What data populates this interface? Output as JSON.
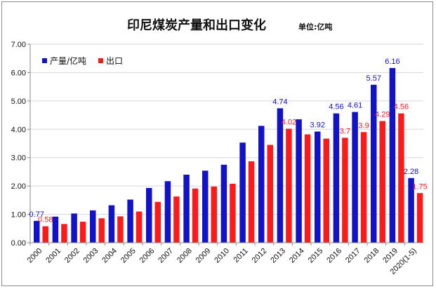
{
  "title": "印尼煤炭产量和出口变化",
  "unit_label": "单位:亿吨",
  "colors": {
    "production": "#1212c8",
    "export": "#ff1a1a",
    "grid": "#d6d6d6",
    "axis": "#888888"
  },
  "chart_data": {
    "type": "bar",
    "categories": [
      "2000",
      "2001",
      "2002",
      "2003",
      "2004",
      "2005",
      "2006",
      "2007",
      "2008",
      "2009",
      "2010",
      "2011",
      "2012",
      "2013",
      "2014",
      "2015",
      "2016",
      "2017",
      "2018",
      "2019",
      "2020(1-5)"
    ],
    "series": [
      {
        "name": "产量/亿吨",
        "color": "#1212c8",
        "values": [
          0.77,
          0.92,
          1.03,
          1.14,
          1.32,
          1.52,
          1.93,
          2.17,
          2.4,
          2.54,
          2.75,
          3.53,
          4.12,
          4.74,
          4.35,
          3.92,
          4.56,
          4.61,
          5.57,
          6.16,
          2.28
        ]
      },
      {
        "name": "出口",
        "color": "#ff1a1a",
        "values": [
          0.58,
          0.66,
          0.74,
          0.86,
          0.93,
          1.1,
          1.44,
          1.63,
          1.91,
          1.98,
          2.08,
          2.87,
          3.45,
          4.02,
          3.82,
          3.67,
          3.7,
          3.9,
          4.29,
          4.56,
          1.75
        ]
      }
    ],
    "data_labels": {
      "产量/亿吨": {
        "0": "0.77",
        "13": "4.74",
        "15": "3.92",
        "16": "4.56",
        "17": "4.61",
        "18": "5.57",
        "19": "6.16",
        "20": "2.28"
      },
      "出口": {
        "0": "0.58",
        "13": "4.02",
        "16": "3.7",
        "17": "3.9",
        "18": "4.29",
        "19": "4.56",
        "20": "1.75"
      }
    },
    "y_ticks": [
      "0.00",
      "1.00",
      "2.00",
      "3.00",
      "4.00",
      "5.00",
      "6.00",
      "7.00"
    ],
    "ylim": [
      0,
      7
    ],
    "grid": true,
    "legend_position": "top-left",
    "xlabel": "",
    "ylabel": ""
  }
}
